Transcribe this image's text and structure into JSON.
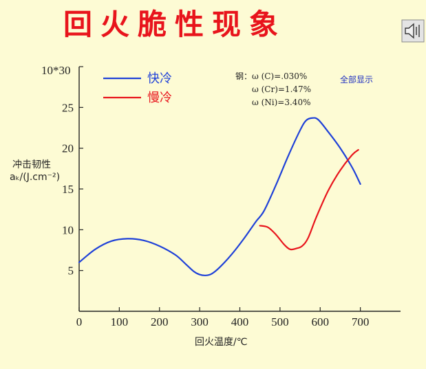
{
  "title": "回火脆性现象",
  "speaker_icon": "speaker-icon",
  "show_all_button": "全部显示",
  "chart_data": {
    "type": "line",
    "title": "回火脆性现象",
    "xlabel": "回火温度/℃",
    "ylabel_line1": "冲击韧性",
    "ylabel_line2": "aₖ/(J.cm⁻²)",
    "y_top_label": "10*30",
    "xlim": [
      0,
      800
    ],
    "ylim": [
      0,
      30
    ],
    "x_ticks": [
      0,
      100,
      200,
      300,
      400,
      500,
      600,
      700
    ],
    "y_ticks": [
      5,
      10,
      15,
      20,
      25
    ],
    "grid": false,
    "legend_position": "top-left",
    "composition_lines": [
      "钢：ω (C)=.030%",
      "ω (Cr)=1.47%",
      "ω (Ni)=3.40%"
    ],
    "series": [
      {
        "name": "快冷",
        "color": "#1E40D8",
        "x": [
          0,
          40,
          80,
          120,
          160,
          200,
          240,
          265,
          285,
          300,
          315,
          330,
          350,
          380,
          410,
          440,
          460,
          490,
          520,
          550,
          565,
          580,
          595,
          620,
          650,
          680,
          700
        ],
        "y": [
          6.0,
          7.6,
          8.6,
          8.9,
          8.7,
          8.0,
          6.9,
          5.8,
          4.9,
          4.5,
          4.4,
          4.6,
          5.4,
          7.0,
          8.9,
          11.0,
          12.3,
          15.5,
          19.0,
          22.2,
          23.4,
          23.7,
          23.5,
          22.0,
          20.0,
          17.6,
          15.6
        ]
      },
      {
        "name": "慢冷",
        "color": "#E8141C",
        "x": [
          450,
          470,
          490,
          510,
          525,
          540,
          555,
          570,
          590,
          620,
          650,
          680,
          695
        ],
        "y": [
          10.5,
          10.3,
          9.4,
          8.2,
          7.6,
          7.7,
          8.0,
          9.0,
          11.5,
          14.8,
          17.3,
          19.2,
          19.8
        ]
      }
    ]
  }
}
